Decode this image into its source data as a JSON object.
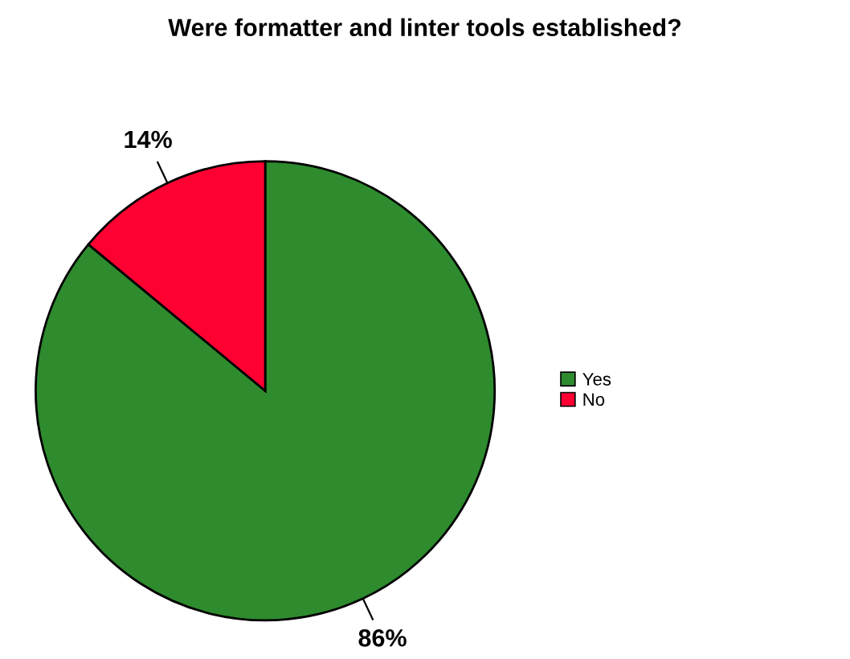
{
  "chart_data": {
    "type": "pie",
    "title": "Were formatter and linter tools established?",
    "categories": [
      "Yes",
      "No"
    ],
    "values": [
      86,
      14
    ],
    "colors": [
      "#2e8b2e",
      "#ff0033"
    ],
    "value_labels": [
      "86%",
      "14%"
    ],
    "legend": "right"
  }
}
